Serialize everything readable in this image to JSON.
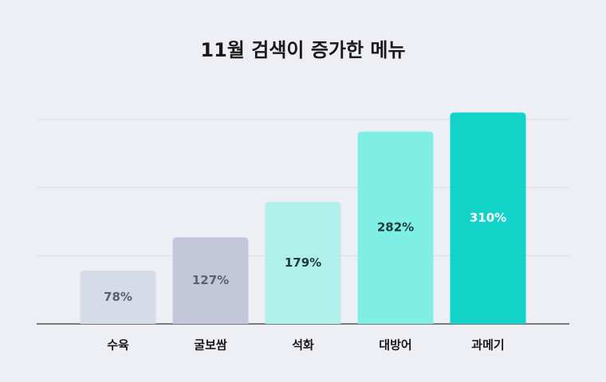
{
  "chart_data": {
    "type": "bar",
    "title": "11월 검색이 증가한 메뉴",
    "categories": [
      "수육",
      "굴보쌈",
      "석화",
      "대방어",
      "과메기"
    ],
    "values": [
      78,
      127,
      179,
      282,
      310
    ],
    "value_labels": [
      "78%",
      "127%",
      "179%",
      "282%",
      "310%"
    ],
    "colors": [
      "#d6dbe8",
      "#c4c7da",
      "#b0efea",
      "#80efe3",
      "#13d3c9"
    ],
    "label_colors": [
      "#5c6070",
      "#5c6070",
      "#1d3b3a",
      "#1d3b3a",
      "#ffffff"
    ],
    "ylim": [
      0,
      300
    ],
    "yticks": [
      0,
      100,
      200,
      300
    ],
    "grid": true
  }
}
